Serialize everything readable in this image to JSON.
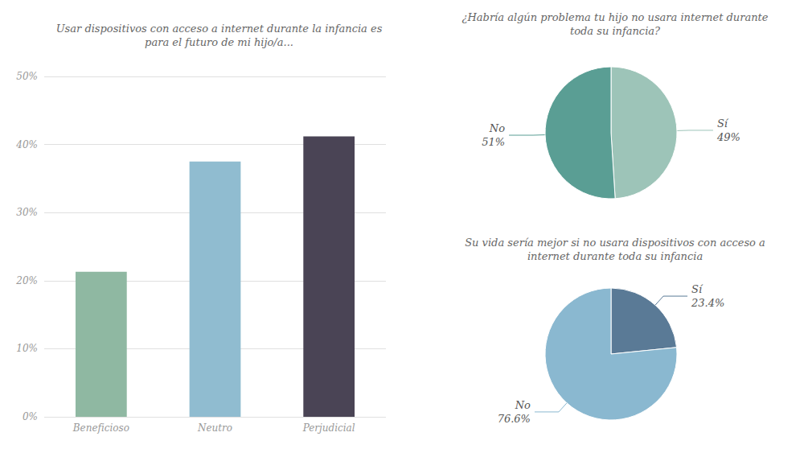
{
  "chart_data": [
    {
      "type": "bar",
      "title": "Usar dispositivos con acceso a internet durante la infancia es\npara el futuro de mi hijo/a...",
      "categories": [
        "Beneficioso",
        "Neutro",
        "Perjudicial"
      ],
      "values": [
        21.3,
        37.5,
        41.2
      ],
      "colors": [
        "#8fb8a2",
        "#90bcd0",
        "#4a4455"
      ],
      "ylim": [
        0,
        50
      ],
      "yticks": [
        {
          "value": 0,
          "label": "0%"
        },
        {
          "value": 10,
          "label": "10%"
        },
        {
          "value": 20,
          "label": "20%"
        },
        {
          "value": 30,
          "label": "30%"
        },
        {
          "value": 40,
          "label": "40%"
        },
        {
          "value": 50,
          "label": "50%"
        }
      ],
      "grid": true
    },
    {
      "type": "pie",
      "title": "¿Habría algún problema tu hijo no usara internet durante\ntoda su infancia?",
      "categories": [
        "Sí",
        "No"
      ],
      "values": [
        49,
        51
      ],
      "value_labels": [
        "49%",
        "51%"
      ],
      "colors": [
        "#9dc4b8",
        "#5a9e94"
      ]
    },
    {
      "type": "pie",
      "title": "Su vida sería mejor si no usara dispositivos con acceso a\ninternet durante toda su infancia",
      "categories": [
        "Sí",
        "No"
      ],
      "values": [
        23.4,
        76.6
      ],
      "value_labels": [
        "23.4%",
        "76.6%"
      ],
      "colors": [
        "#5a7a96",
        "#8ab8d0"
      ]
    }
  ]
}
